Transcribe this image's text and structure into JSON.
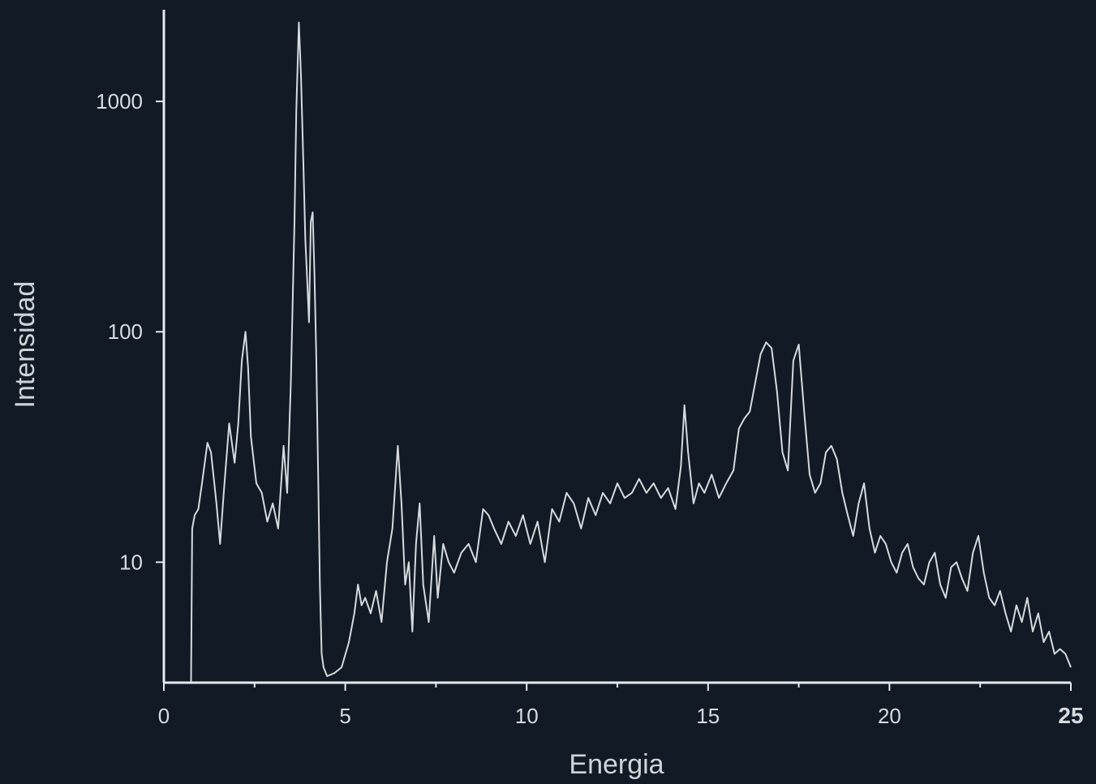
{
  "chart_data": {
    "type": "line",
    "title": "",
    "xlabel": "Energia",
    "ylabel": "Intensidad",
    "xlim": [
      0,
      25
    ],
    "ylim": [
      3,
      2500
    ],
    "y_scale": "log",
    "grid": false,
    "legend": "none",
    "x_ticks": [
      {
        "value": 0,
        "label": "0"
      },
      {
        "value": 5,
        "label": "5"
      },
      {
        "value": 10,
        "label": "10"
      },
      {
        "value": 15,
        "label": "15"
      },
      {
        "value": 20,
        "label": "20"
      },
      {
        "value": 25,
        "label": "25"
      }
    ],
    "y_ticks": [
      {
        "value": 10,
        "label": "10"
      },
      {
        "value": 100,
        "label": "100"
      },
      {
        "value": 1000,
        "label": "1000"
      }
    ],
    "colors": {
      "background": "#121a26",
      "line": "#d7dadd",
      "axis": "#e6e9ec"
    },
    "series": [
      {
        "x": [
          0.0,
          0.75,
          0.78,
          0.85,
          0.95,
          1.05,
          1.2,
          1.3,
          1.45,
          1.55,
          1.65,
          1.8,
          1.95,
          2.05,
          2.15,
          2.25,
          2.32,
          2.4,
          2.55,
          2.7,
          2.85,
          3.0,
          3.15,
          3.3,
          3.4,
          3.5,
          3.6,
          3.65,
          3.72,
          3.78,
          3.85,
          3.9,
          3.95,
          4.0,
          4.05,
          4.1,
          4.15,
          4.2,
          4.25,
          4.3,
          4.35,
          4.4,
          4.5,
          4.7,
          4.9,
          5.1,
          5.25,
          5.35,
          5.45,
          5.55,
          5.7,
          5.85,
          6.0,
          6.15,
          6.3,
          6.45,
          6.55,
          6.65,
          6.75,
          6.85,
          6.95,
          7.05,
          7.15,
          7.3,
          7.45,
          7.55,
          7.7,
          7.85,
          8.0,
          8.2,
          8.4,
          8.6,
          8.8,
          8.95,
          9.1,
          9.3,
          9.5,
          9.7,
          9.9,
          10.1,
          10.3,
          10.5,
          10.7,
          10.9,
          11.1,
          11.3,
          11.5,
          11.7,
          11.9,
          12.1,
          12.3,
          12.5,
          12.7,
          12.9,
          13.1,
          13.3,
          13.5,
          13.7,
          13.9,
          14.1,
          14.25,
          14.35,
          14.45,
          14.6,
          14.75,
          14.9,
          15.1,
          15.3,
          15.5,
          15.7,
          15.85,
          16.0,
          16.15,
          16.3,
          16.45,
          16.6,
          16.75,
          16.9,
          17.05,
          17.2,
          17.35,
          17.5,
          17.65,
          17.8,
          17.95,
          18.1,
          18.25,
          18.4,
          18.55,
          18.7,
          18.85,
          19.0,
          19.15,
          19.3,
          19.45,
          19.6,
          19.75,
          19.9,
          20.05,
          20.2,
          20.35,
          20.5,
          20.65,
          20.8,
          20.95,
          21.1,
          21.25,
          21.4,
          21.55,
          21.7,
          21.85,
          22.0,
          22.15,
          22.3,
          22.45,
          22.6,
          22.75,
          22.9,
          23.05,
          23.2,
          23.35,
          23.5,
          23.65,
          23.8,
          23.95,
          24.1,
          24.25,
          24.4,
          24.55,
          24.7,
          24.85,
          25.0
        ],
        "y": [
          3.0,
          3.0,
          14.0,
          16.0,
          17.0,
          22.0,
          33.0,
          30.0,
          18.0,
          12.0,
          20.0,
          40.0,
          27.0,
          40.0,
          75.0,
          100.0,
          70.0,
          35.0,
          22.0,
          20.0,
          15.0,
          18.0,
          14.0,
          32.0,
          20.0,
          60.0,
          300.0,
          900.0,
          2200.0,
          1300.0,
          500.0,
          250.0,
          170.0,
          110.0,
          300.0,
          330.0,
          180.0,
          80.0,
          25.0,
          8.0,
          4.0,
          3.5,
          3.2,
          3.3,
          3.5,
          4.5,
          6.0,
          8.0,
          6.5,
          7.0,
          6.0,
          7.5,
          5.5,
          10.0,
          14.0,
          32.0,
          18.0,
          8.0,
          10.0,
          5.0,
          12.0,
          18.0,
          8.0,
          5.5,
          13.0,
          7.0,
          12.0,
          10.0,
          9.0,
          11.0,
          12.0,
          10.0,
          17.0,
          16.0,
          14.0,
          12.0,
          15.0,
          13.0,
          16.0,
          12.0,
          15.0,
          10.0,
          17.0,
          15.0,
          20.0,
          18.0,
          14.0,
          19.0,
          16.0,
          20.0,
          18.0,
          22.0,
          19.0,
          20.0,
          23.0,
          20.0,
          22.0,
          19.0,
          21.0,
          17.0,
          26.0,
          48.0,
          30.0,
          18.0,
          22.0,
          20.0,
          24.0,
          19.0,
          22.0,
          25.0,
          38.0,
          42.0,
          45.0,
          60.0,
          80.0,
          90.0,
          85.0,
          55.0,
          30.0,
          25.0,
          75.0,
          88.0,
          45.0,
          24.0,
          20.0,
          22.0,
          30.0,
          32.0,
          28.0,
          20.0,
          16.0,
          13.0,
          18.0,
          22.0,
          14.0,
          11.0,
          13.0,
          12.0,
          10.0,
          9.0,
          11.0,
          12.0,
          9.5,
          8.5,
          8.0,
          10.0,
          11.0,
          8.0,
          7.0,
          9.5,
          10.0,
          8.5,
          7.5,
          11.0,
          13.0,
          9.0,
          7.0,
          6.5,
          7.5,
          6.0,
          5.0,
          6.5,
          5.5,
          7.0,
          5.0,
          6.0,
          4.5,
          5.0,
          4.0,
          4.2,
          4.0,
          3.5
        ]
      }
    ]
  }
}
